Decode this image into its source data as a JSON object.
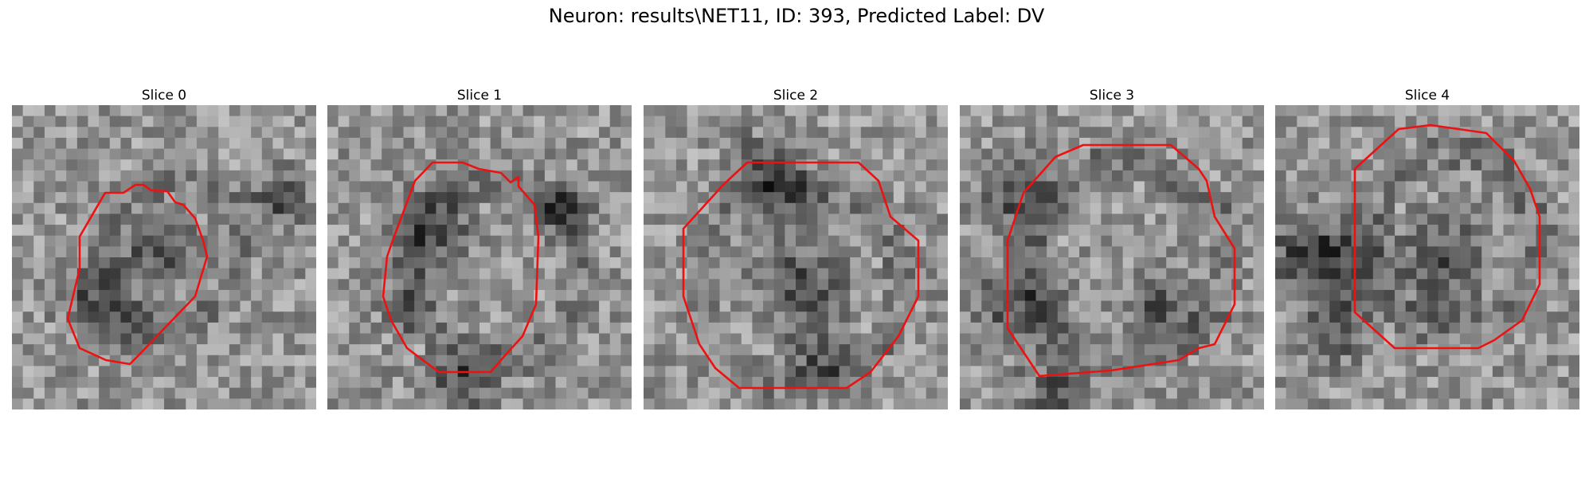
{
  "figure": {
    "title": "Neuron: results\\NET11, ID: 393, Predicted Label: DV"
  },
  "slices": [
    {
      "label": "Slice 0"
    },
    {
      "label": "Slice 1"
    },
    {
      "label": "Slice 2"
    },
    {
      "label": "Slice 3"
    },
    {
      "label": "Slice 4"
    }
  ],
  "colors": {
    "contour": "#ee1111",
    "background": "#ffffff"
  }
}
